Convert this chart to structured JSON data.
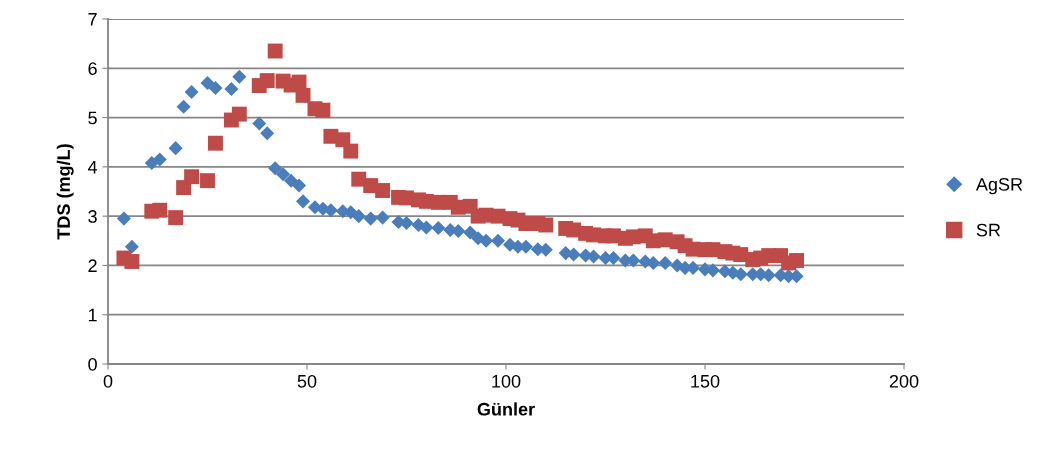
{
  "chart_data": {
    "type": "scatter",
    "xlabel": "Günler",
    "ylabel": "TDS (mg/L)",
    "xlim": [
      0,
      200
    ],
    "xticks": [
      0,
      50,
      100,
      150,
      200
    ],
    "ylim": [
      0,
      7
    ],
    "yticks": [
      0,
      1,
      2,
      3,
      4,
      5,
      6,
      7
    ],
    "grid": "y",
    "legend": "right",
    "series": [
      {
        "name": "AgSR",
        "color": "#4a7ebb",
        "marker": "diamond",
        "x": [
          4,
          6,
          11,
          13,
          17,
          19,
          21,
          25,
          27,
          31,
          33,
          38,
          40,
          42,
          44,
          46,
          48,
          49,
          52,
          54,
          56,
          59,
          61,
          63,
          66,
          69,
          73,
          75,
          78,
          80,
          83,
          86,
          88,
          91,
          93,
          95,
          98,
          101,
          103,
          105,
          108,
          110,
          115,
          117,
          120,
          122,
          125,
          127,
          130,
          132,
          135,
          137,
          140,
          143,
          145,
          147,
          150,
          152,
          155,
          157,
          159,
          162,
          164,
          166,
          169,
          171,
          173
        ],
        "values": [
          2.95,
          2.38,
          4.08,
          4.15,
          4.38,
          5.22,
          5.52,
          5.7,
          5.6,
          5.58,
          5.83,
          4.88,
          4.68,
          3.97,
          3.85,
          3.72,
          3.62,
          3.3,
          3.18,
          3.15,
          3.12,
          3.1,
          3.08,
          3.0,
          2.95,
          2.97,
          2.88,
          2.86,
          2.82,
          2.77,
          2.76,
          2.72,
          2.7,
          2.67,
          2.55,
          2.5,
          2.5,
          2.42,
          2.38,
          2.38,
          2.33,
          2.32,
          2.25,
          2.22,
          2.2,
          2.18,
          2.15,
          2.15,
          2.1,
          2.1,
          2.08,
          2.05,
          2.05,
          2.0,
          1.95,
          1.95,
          1.92,
          1.9,
          1.88,
          1.85,
          1.82,
          1.82,
          1.82,
          1.8,
          1.8,
          1.78,
          1.78
        ]
      },
      {
        "name": "SR",
        "color": "#be4b48",
        "marker": "square",
        "x": [
          4,
          6,
          11,
          13,
          17,
          19,
          21,
          25,
          27,
          31,
          33,
          38,
          40,
          42,
          44,
          46,
          48,
          49,
          52,
          54,
          56,
          59,
          61,
          63,
          66,
          69,
          73,
          75,
          78,
          80,
          83,
          86,
          88,
          91,
          93,
          95,
          98,
          101,
          103,
          105,
          108,
          110,
          115,
          117,
          120,
          122,
          125,
          127,
          130,
          132,
          135,
          137,
          140,
          143,
          145,
          147,
          150,
          152,
          155,
          157,
          159,
          162,
          164,
          166,
          169,
          171,
          173
        ],
        "values": [
          2.15,
          2.08,
          3.1,
          3.12,
          2.97,
          3.58,
          3.8,
          3.72,
          4.48,
          4.95,
          5.07,
          5.65,
          5.75,
          6.35,
          5.74,
          5.66,
          5.72,
          5.45,
          5.18,
          5.15,
          4.62,
          4.55,
          4.32,
          3.75,
          3.62,
          3.52,
          3.38,
          3.37,
          3.33,
          3.3,
          3.28,
          3.28,
          3.18,
          3.2,
          3.0,
          3.02,
          3.0,
          2.95,
          2.92,
          2.85,
          2.85,
          2.82,
          2.75,
          2.72,
          2.65,
          2.62,
          2.6,
          2.6,
          2.55,
          2.58,
          2.6,
          2.5,
          2.52,
          2.48,
          2.4,
          2.33,
          2.32,
          2.32,
          2.28,
          2.25,
          2.22,
          2.12,
          2.15,
          2.2,
          2.2,
          2.05,
          2.1
        ]
      }
    ]
  }
}
